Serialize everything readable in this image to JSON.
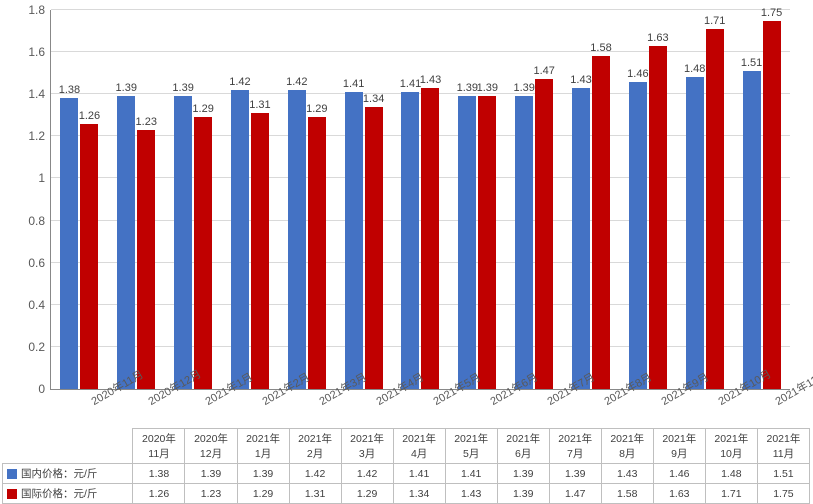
{
  "chart": {
    "type": "bar",
    "ylim": [
      0,
      1.8
    ],
    "ytick_step": 0.2,
    "yticks": [
      0,
      0.2,
      0.4,
      0.6,
      0.8,
      1,
      1.2,
      1.4,
      1.6,
      1.8
    ],
    "grid_color": "#d9d9d9",
    "background_color": "#ffffff",
    "axis_color": "#888888",
    "label_fontsize": 12,
    "value_label_fontsize": 11,
    "categories_full": [
      "2020年11月",
      "2020年12月",
      "2021年1月",
      "2021年2月",
      "2021年3月",
      "2021年4月",
      "2021年5月",
      "2021年6月",
      "2021年7月",
      "2021年8月",
      "2021年9月",
      "2021年10月",
      "2021年11月"
    ],
    "series": [
      {
        "name": "国内价格：元/斤",
        "color": "#4472c4",
        "values": [
          1.38,
          1.39,
          1.39,
          1.42,
          1.42,
          1.41,
          1.41,
          1.39,
          1.39,
          1.43,
          1.46,
          1.48,
          1.51
        ],
        "labels": [
          "1.38",
          "1.39",
          "1.39",
          "1.42",
          "1.42",
          "1.41",
          "1.41",
          "1.39",
          "1.39",
          "1.43",
          "1.46",
          "1.48",
          "1.51"
        ]
      },
      {
        "name": "国际价格：元/斤",
        "color": "#c00000",
        "values": [
          1.26,
          1.23,
          1.29,
          1.31,
          1.29,
          1.34,
          1.43,
          1.39,
          1.47,
          1.58,
          1.63,
          1.71,
          1.75
        ],
        "labels": [
          "1.26",
          "1.23",
          "1.29",
          "1.31",
          "1.29",
          "1.34",
          "1.43",
          "1.39",
          "1.47",
          "1.58",
          "1.63",
          "1.71",
          "1.75"
        ]
      }
    ],
    "table_headers": [
      {
        "line1": "2020年",
        "line2": "11月"
      },
      {
        "line1": "2020年",
        "line2": "12月"
      },
      {
        "line1": "2021年",
        "line2": "1月"
      },
      {
        "line1": "2021年",
        "line2": "2月"
      },
      {
        "line1": "2021年",
        "line2": "3月"
      },
      {
        "line1": "2021年",
        "line2": "4月"
      },
      {
        "line1": "2021年",
        "line2": "5月"
      },
      {
        "line1": "2021年",
        "line2": "6月"
      },
      {
        "line1": "2021年",
        "line2": "7月"
      },
      {
        "line1": "2021年",
        "line2": "8月"
      },
      {
        "line1": "2021年",
        "line2": "9月"
      },
      {
        "line1": "2021年",
        "line2": "10月"
      },
      {
        "line1": "2021年",
        "line2": "11月"
      }
    ]
  }
}
